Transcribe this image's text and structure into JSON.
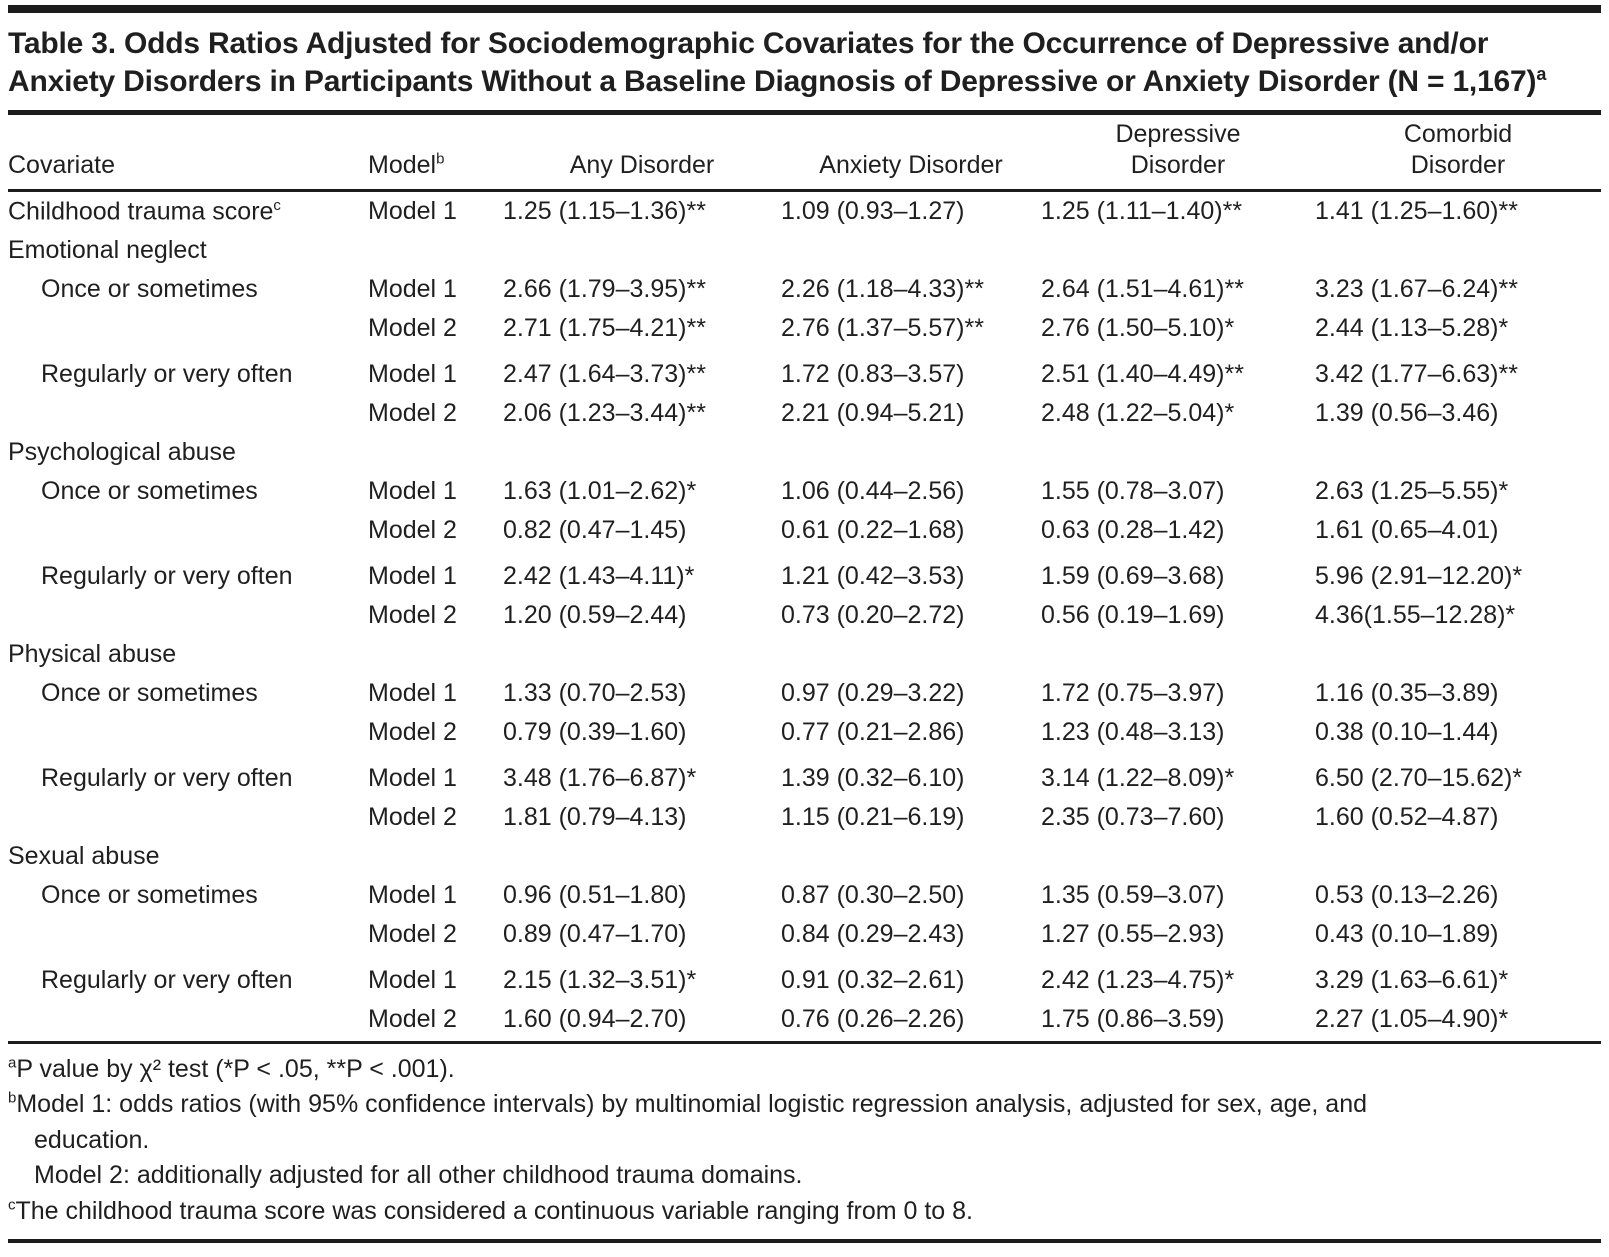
{
  "title": "Table 3. Odds Ratios Adjusted for Sociodemographic Covariates for the Occurrence of Depressive and/or Anxiety Disorders in Participants Without a Baseline Diagnosis of Depressive or Anxiety Disorder (N = 1,167)",
  "title_sup": "a",
  "header": {
    "covariate": "Covariate",
    "model": "Model",
    "model_sup": "b",
    "any": "Any Disorder",
    "anxiety": "Anxiety Disorder",
    "depressive_line1": "Depressive",
    "depressive_line2": "Disorder",
    "comorbid_line1": "Comorbid",
    "comorbid_line2": "Disorder"
  },
  "rows": [
    {
      "covariate": "Childhood trauma score",
      "covariate_sup": "c",
      "model": "Model 1",
      "any": "1.25 (1.15–1.36)**",
      "anxiety": "1.09 (0.93–1.27)",
      "depressive": "1.25 (1.11–1.40)**",
      "comorbid": "1.41 (1.25–1.60)**"
    },
    {
      "covariate": "Emotional neglect",
      "section": true
    },
    {
      "covariate": "Once or sometimes",
      "indent": true,
      "model": "Model 1",
      "any": "2.66 (1.79–3.95)**",
      "anxiety": "2.26 (1.18–4.33)**",
      "depressive": "2.64 (1.51–4.61)**",
      "comorbid": "3.23 (1.67–6.24)**"
    },
    {
      "model": "Model 2",
      "any": "2.71 (1.75–4.21)**",
      "anxiety": "2.76 (1.37–5.57)**",
      "depressive": "2.76 (1.50–5.10)*",
      "comorbid": "2.44 (1.13–5.28)*"
    },
    {
      "covariate": "Regularly or very often",
      "indent": true,
      "gap": true,
      "model": "Model 1",
      "any": "2.47 (1.64–3.73)**",
      "anxiety": "1.72 (0.83–3.57)",
      "depressive": "2.51 (1.40–4.49)**",
      "comorbid": "3.42 (1.77–6.63)**"
    },
    {
      "model": "Model 2",
      "any": "2.06 (1.23–3.44)**",
      "anxiety": "2.21 (0.94–5.21)",
      "depressive": "2.48 (1.22–5.04)*",
      "comorbid": "1.39 (0.56–3.46)"
    },
    {
      "covariate": "Psychological abuse",
      "section": true
    },
    {
      "covariate": "Once or sometimes",
      "indent": true,
      "model": "Model 1",
      "any": "1.63 (1.01–2.62)*",
      "anxiety": "1.06 (0.44–2.56)",
      "depressive": "1.55 (0.78–3.07)",
      "comorbid": "2.63 (1.25–5.55)*"
    },
    {
      "model": "Model 2",
      "any": "0.82 (0.47–1.45)",
      "anxiety": "0.61 (0.22–1.68)",
      "depressive": "0.63 (0.28–1.42)",
      "comorbid": "1.61 (0.65–4.01)"
    },
    {
      "covariate": "Regularly or very often",
      "indent": true,
      "gap": true,
      "model": "Model 1",
      "any": "2.42 (1.43–4.11)*",
      "anxiety": "1.21 (0.42–3.53)",
      "depressive": "1.59 (0.69–3.68)",
      "comorbid": "5.96 (2.91–12.20)*"
    },
    {
      "model": "Model 2",
      "any": "1.20 (0.59–2.44)",
      "anxiety": "0.73 (0.20–2.72)",
      "depressive": "0.56 (0.19–1.69)",
      "comorbid": "4.36(1.55–12.28)*"
    },
    {
      "covariate": "Physical abuse",
      "section": true
    },
    {
      "covariate": "Once or sometimes",
      "indent": true,
      "model": "Model 1",
      "any": "1.33 (0.70–2.53)",
      "anxiety": "0.97 (0.29–3.22)",
      "depressive": "1.72 (0.75–3.97)",
      "comorbid": "1.16 (0.35–3.89)"
    },
    {
      "model": "Model 2",
      "any": "0.79 (0.39–1.60)",
      "anxiety": "0.77 (0.21–2.86)",
      "depressive": "1.23 (0.48–3.13)",
      "comorbid": "0.38 (0.10–1.44)"
    },
    {
      "covariate": "Regularly or very often",
      "indent": true,
      "gap": true,
      "model": "Model 1",
      "any": "3.48 (1.76–6.87)*",
      "anxiety": "1.39 (0.32–6.10)",
      "depressive": "3.14 (1.22–8.09)*",
      "comorbid": "6.50 (2.70–15.62)*"
    },
    {
      "model": "Model 2",
      "any": "1.81 (0.79–4.13)",
      "anxiety": "1.15 (0.21–6.19)",
      "depressive": "2.35 (0.73–7.60)",
      "comorbid": "1.60 (0.52–4.87)"
    },
    {
      "covariate": "Sexual abuse",
      "section": true
    },
    {
      "covariate": "Once or sometimes",
      "indent": true,
      "model": "Model 1",
      "any": "0.96 (0.51–1.80)",
      "anxiety": "0.87 (0.30–2.50)",
      "depressive": "1.35 (0.59–3.07)",
      "comorbid": "0.53 (0.13–2.26)"
    },
    {
      "model": "Model 2",
      "any": "0.89 (0.47–1.70)",
      "anxiety": "0.84 (0.29–2.43)",
      "depressive": "1.27 (0.55–2.93)",
      "comorbid": "0.43 (0.10–1.89)"
    },
    {
      "covariate": "Regularly or very often",
      "indent": true,
      "gap": true,
      "model": "Model 1",
      "any": "2.15 (1.32–3.51)*",
      "anxiety": "0.91 (0.32–2.61)",
      "depressive": "2.42 (1.23–4.75)*",
      "comorbid": "3.29 (1.63–6.61)*"
    },
    {
      "model": "Model 2",
      "any": "1.60 (0.94–2.70)",
      "anxiety": "0.76 (0.26–2.26)",
      "depressive": "1.75 (0.86–3.59)",
      "comorbid": "2.27 (1.05–4.90)*"
    }
  ],
  "footnotes": [
    {
      "sup": "a",
      "text": "P value by χ² test (*P < .05, **P < .001)."
    },
    {
      "sup": "b",
      "text": "Model 1: odds ratios (with 95% confidence intervals) by multinomial logistic regression analysis, adjusted for sex, age, and education."
    },
    {
      "sup": "",
      "text": "Model 2: additionally adjusted for all other childhood trauma domains."
    },
    {
      "sup": "c",
      "text": "The childhood trauma score was considered a continuous variable ranging from 0 to 8."
    }
  ]
}
